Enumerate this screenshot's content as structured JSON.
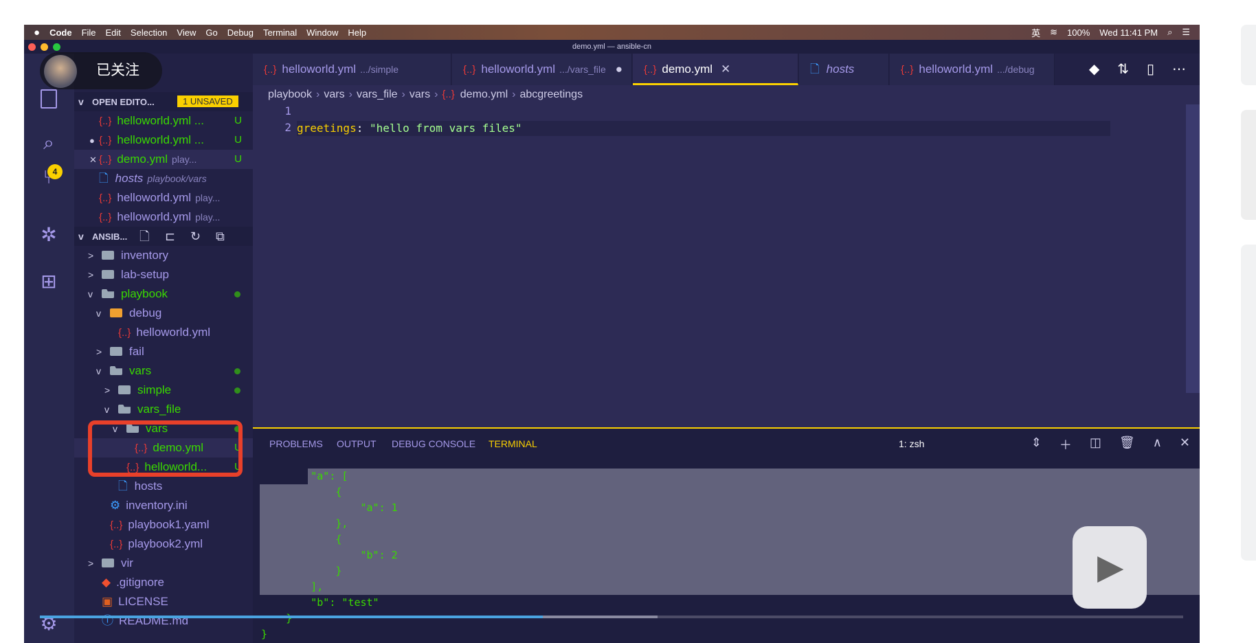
{
  "menubar": {
    "apple": "",
    "items": [
      "Code",
      "File",
      "Edit",
      "Selection",
      "View",
      "Go",
      "Debug",
      "Terminal",
      "Window",
      "Help"
    ],
    "status": [
      "英",
      "100%",
      "Wed 11:41 PM"
    ]
  },
  "window_title": "demo.yml — ansible-cn",
  "overlay": {
    "follow_label": "已关注"
  },
  "activity": {
    "scm_badge": "4"
  },
  "sidebar": {
    "open_editors_header": "OPEN EDITO...",
    "unsaved_badge": "1 UNSAVED",
    "open_editors": [
      {
        "name": "helloworld.yml ...",
        "badge": "U",
        "color": "#3ad900",
        "icon": "yaml",
        "prefix": ""
      },
      {
        "name": "helloworld.yml ...",
        "badge": "U",
        "color": "#3ad900",
        "icon": "yaml",
        "prefix": "●"
      },
      {
        "name": "demo.yml",
        "desc": "play...",
        "badge": "U",
        "color": "#3ad900",
        "icon": "yaml",
        "prefix": "✕"
      },
      {
        "name": "hosts",
        "desc": "playbook/vars",
        "color": "#a599e9",
        "icon": "file",
        "prefix": "",
        "italic": true
      },
      {
        "name": "helloworld.yml",
        "desc": "play...",
        "color": "#a599e9",
        "icon": "yaml",
        "prefix": ""
      },
      {
        "name": "helloworld.yml",
        "desc": "play...",
        "color": "#a599e9",
        "icon": "yaml",
        "prefix": ""
      }
    ],
    "project_header": "ANSIB...",
    "tree": [
      {
        "name": "inventory",
        "level": 0,
        "type": "folder",
        "chev": ">"
      },
      {
        "name": "lab-setup",
        "level": 0,
        "type": "folder",
        "chev": ">"
      },
      {
        "name": "playbook",
        "level": 0,
        "type": "folder-open",
        "chev": "v",
        "color": "#3ad900",
        "dot": true
      },
      {
        "name": "debug",
        "level": 1,
        "type": "folder-debug",
        "chev": "v"
      },
      {
        "name": "helloworld.yml",
        "level": 2,
        "type": "yaml"
      },
      {
        "name": "fail",
        "level": 1,
        "type": "folder",
        "chev": ">"
      },
      {
        "name": "vars",
        "level": 1,
        "type": "folder-open",
        "chev": "v",
        "color": "#3ad900",
        "dot": true
      },
      {
        "name": "simple",
        "level": 2,
        "type": "folder",
        "chev": ">",
        "color": "#3ad900",
        "dot": true
      },
      {
        "name": "vars_file",
        "level": 2,
        "type": "folder-open",
        "chev": "v",
        "color": "#3ad900"
      },
      {
        "name": "vars",
        "level": 3,
        "type": "folder-open",
        "chev": "v",
        "color": "#3ad900",
        "dot": true
      },
      {
        "name": "demo.yml",
        "level": 4,
        "type": "yaml",
        "color": "#3ad900",
        "badge": "U",
        "selected": true
      },
      {
        "name": "helloworld...",
        "level": 3,
        "type": "yaml",
        "color": "#3ad900",
        "badge": "U"
      },
      {
        "name": "hosts",
        "level": 2,
        "type": "file"
      },
      {
        "name": "inventory.ini",
        "level": 1,
        "type": "gear"
      },
      {
        "name": "playbook1.yaml",
        "level": 1,
        "type": "yaml"
      },
      {
        "name": "playbook2.yml",
        "level": 1,
        "type": "yaml"
      },
      {
        "name": "vir",
        "level": 0,
        "type": "folder",
        "chev": ">"
      },
      {
        "name": ".gitignore",
        "level": 0,
        "type": "git"
      },
      {
        "name": "LICENSE",
        "level": 0,
        "type": "license"
      },
      {
        "name": "README.md",
        "level": 0,
        "type": "info"
      }
    ]
  },
  "tabs": [
    {
      "name": "helloworld.yml",
      "desc": ".../simple",
      "icon": "yaml"
    },
    {
      "name": "helloworld.yml",
      "desc": ".../vars_file",
      "icon": "yaml",
      "dirty": "●"
    },
    {
      "name": "demo.yml",
      "icon": "yaml",
      "active": true,
      "close": "✕"
    },
    {
      "name": "hosts",
      "icon": "file",
      "italic": true
    },
    {
      "name": "helloworld.yml",
      "desc": ".../debug",
      "icon": "yaml"
    }
  ],
  "breadcrumb": [
    "playbook",
    "vars",
    "vars_file",
    "vars",
    "demo.yml",
    "abcgreetings"
  ],
  "editor": {
    "lines": [
      {
        "n": "1",
        "key": "",
        "val": ""
      },
      {
        "n": "2",
        "key": "greetings",
        "val": "\"hello from vars files\""
      }
    ]
  },
  "panel": {
    "tabs": [
      "PROBLEMS",
      "OUTPUT",
      "DEBUG CONSOLE",
      "TERMINAL"
    ],
    "active_tab": "TERMINAL",
    "terminal_select": "1: zsh",
    "terminal_lines": [
      "        \"a\": [",
      "            {",
      "                \"a\": 1",
      "            },",
      "            {",
      "                \"b\": 2",
      "            }",
      "        ],",
      "        \"b\": \"test\"",
      "    }",
      "}"
    ]
  },
  "video": {
    "progress_percent": 44,
    "buffered_percent": 54
  },
  "colors": {
    "accent": "#fad000",
    "editor_bg": "#2d2b55",
    "sidebar_bg": "#222145",
    "git_added": "#3ad900",
    "yaml_icon": "#ec3a37",
    "highlight_box": "#e8402a",
    "progress": "#4aa3e0"
  }
}
